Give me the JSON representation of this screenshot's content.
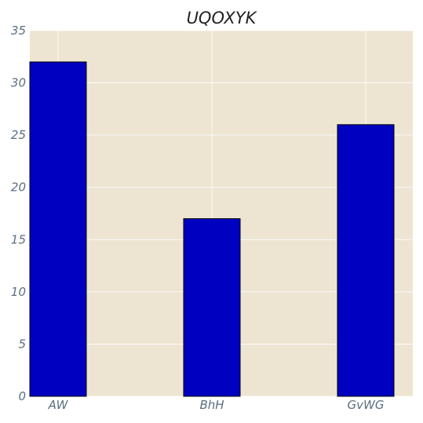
{
  "chart_data": {
    "type": "bar",
    "title": "UQOXYK",
    "xlabel": "",
    "ylabel": "",
    "categories": [
      "AW",
      "BhH",
      "GvWG"
    ],
    "values": [
      32,
      17,
      26
    ],
    "ylim": [
      0,
      35
    ],
    "yticks": [
      0,
      5,
      10,
      15,
      20,
      25,
      30,
      35
    ],
    "grid": true,
    "legend": "none",
    "colors": {
      "bar": "#0000c0",
      "plot_background": "#ede5d2",
      "grid": "#ffffff",
      "tick_text": "#5c6f80",
      "title_text": "#222222"
    }
  }
}
